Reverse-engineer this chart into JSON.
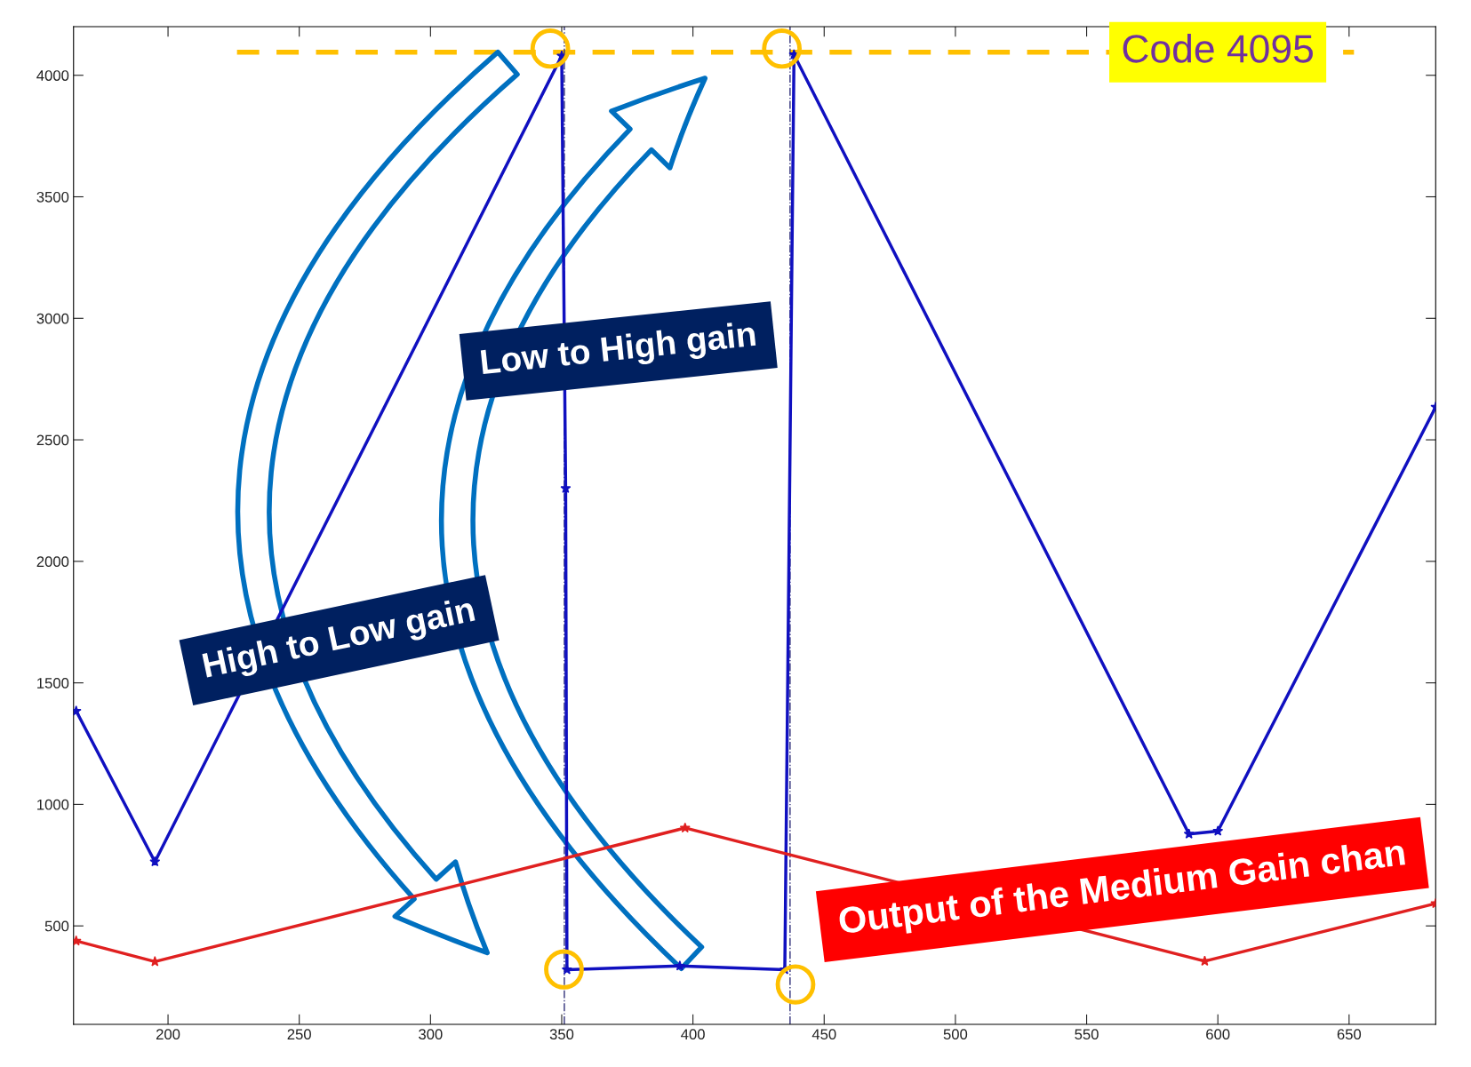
{
  "chart_data": {
    "type": "line",
    "series": [
      {
        "color": "#1010c0",
        "x": [
          165,
          195,
          350,
          351.5,
          352,
          395,
          435,
          438.5,
          589,
          600,
          683
        ],
        "values": [
          1384,
          764,
          4080,
          2300,
          320,
          335,
          320,
          4085,
          878,
          890,
          2635
        ]
      },
      {
        "color": "#e02020",
        "x": [
          165,
          195,
          397,
          595,
          683
        ],
        "values": [
          438,
          353,
          903,
          355,
          592
        ]
      }
    ],
    "marker": "star",
    "line_style": "solid",
    "xlim": [
      164,
      683
    ],
    "ylim": [
      95,
      4200
    ],
    "xticks": [
      200,
      250,
      300,
      350,
      400,
      450,
      500,
      550,
      600,
      650
    ],
    "yticks": [
      500,
      1000,
      1500,
      2000,
      2500,
      3000,
      3500,
      4000
    ],
    "grid": false,
    "ref_lines": [
      {
        "axis": "y",
        "value": 4095,
        "label": "Code 4095",
        "color": "#ffc000",
        "line_style": "dashed"
      },
      {
        "axis": "x",
        "value": 351,
        "color": "#30307a",
        "line_style": "dashdot"
      },
      {
        "axis": "x",
        "value": 437,
        "color": "#30307a",
        "line_style": "dashdot"
      }
    ],
    "annotations": [
      "Low to High gain",
      "High to Low gain",
      "Output of the Medium Gain chan"
    ]
  }
}
